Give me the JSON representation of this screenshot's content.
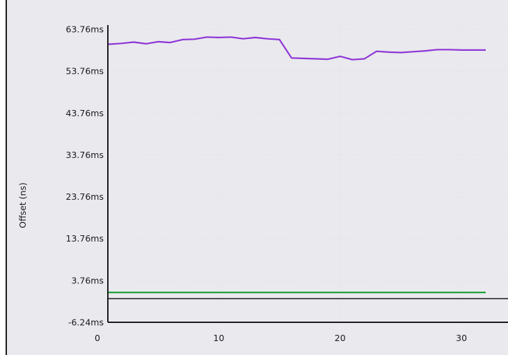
{
  "chart_data": {
    "type": "line",
    "title": "",
    "xlabel": "",
    "ylabel": "Offset (ns)",
    "xlim": [
      0,
      32
    ],
    "ylim": [
      -6.24,
      68.76
    ],
    "x_ticks": [
      0,
      10,
      20,
      30
    ],
    "x_tick_labels": [
      "0",
      "10",
      "20",
      "30"
    ],
    "y_ticks": [
      -6.24,
      3.76,
      13.76,
      23.76,
      33.76,
      43.76,
      53.76,
      63.76
    ],
    "y_tick_labels": [
      "-6.24ms",
      "3.76ms",
      "13.76ms",
      "23.76ms",
      "33.76ms",
      "43.76ms",
      "53.76ms",
      "63.76ms"
    ],
    "grid": true,
    "background": "#e9e9ee",
    "series": [
      {
        "color": "#8e35d6",
        "x": [
          0,
          1,
          2,
          3,
          4,
          5,
          6,
          7,
          8,
          9,
          10,
          11,
          12,
          13,
          14,
          15,
          16,
          17,
          18,
          19,
          20,
          21,
          22,
          23,
          24,
          25,
          26,
          27,
          28,
          29,
          30,
          31,
          32
        ],
        "y": [
          60.6,
          60.2,
          60.4,
          60.7,
          60.3,
          60.8,
          60.6,
          61.3,
          61.4,
          61.9,
          61.8,
          61.9,
          61.5,
          61.8,
          61.5,
          61.3,
          56.9,
          56.8,
          56.7,
          56.6,
          57.3,
          56.5,
          56.7,
          58.5,
          58.3,
          58.2,
          58.4,
          58.6,
          58.9,
          58.9,
          58.8,
          58.8,
          58.8
        ]
      },
      {
        "color": "#1fa33a",
        "x": [
          0,
          32
        ],
        "y": [
          0.9,
          0.9
        ]
      }
    ]
  }
}
